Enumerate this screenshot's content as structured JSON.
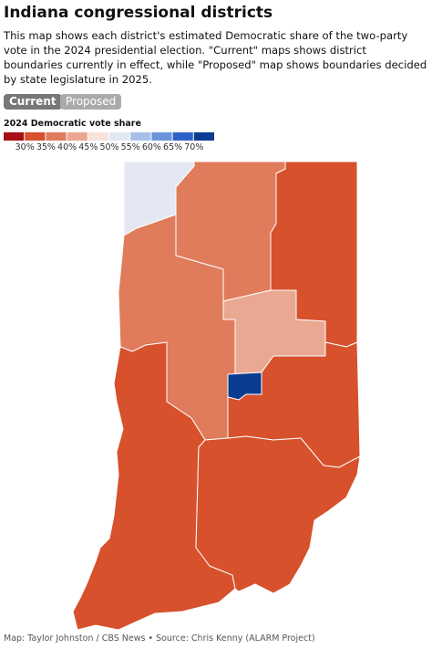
{
  "header": {
    "title": "Indiana congressional districts",
    "description": "This map shows each district's estimated Democratic share of the two-party vote in the 2024 presidential election. \"Current\" maps shows district boundaries currently in effect, while \"Proposed\" map shows boundaries decided by state legislature in 2025."
  },
  "tabs": [
    "Current",
    "Proposed"
  ],
  "legend": {
    "title": "2024 Democratic vote share",
    "colors": [
      "#a50f15",
      "#d6512c",
      "#e07b5c",
      "#eaa791",
      "#f7e2dc",
      "#e3e8f3",
      "#a8c0e8",
      "#6a95db",
      "#2f62c9",
      "#0a3d91"
    ],
    "ticks": [
      "30%",
      "35%",
      "40%",
      "45%",
      "50%",
      "55%",
      "60%",
      "65%",
      "70%"
    ]
  },
  "footer": "Map: Taylor Johnston / CBS News • Source: Chris Kenny (ALARM Project)"
}
